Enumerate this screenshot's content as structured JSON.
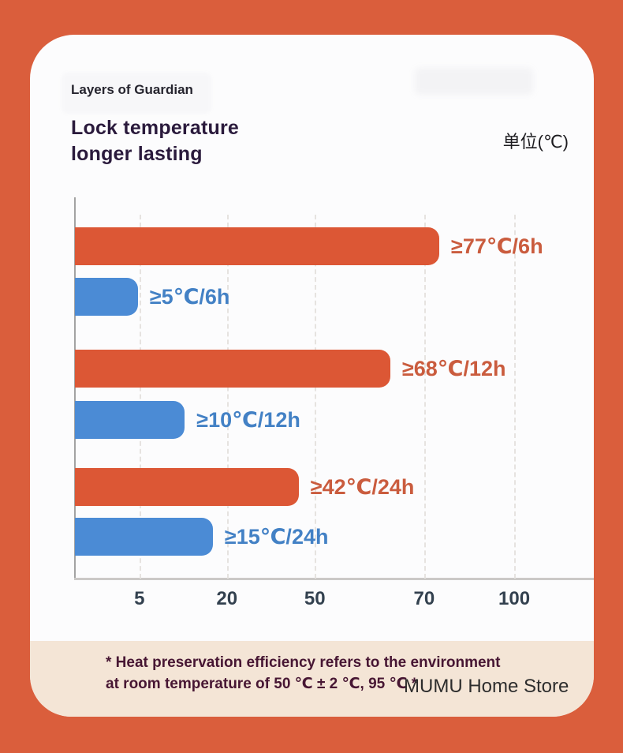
{
  "colors": {
    "background": "#DA5E3C",
    "card": "#FCFCFD",
    "bar_orange": "#DC5735",
    "bar_blue": "#4B8BD5",
    "bar_label_orange": "#CA5C3E",
    "bar_label_blue": "#4381C5",
    "title_text": "#2A1A3C",
    "axis_tick_text": "#33414F",
    "footnote_background": "#F4E5D6",
    "footnote_text": "#471633",
    "watermark_text": "#2D2D2D"
  },
  "header": {
    "eyebrow": "Layers of Guardian",
    "title_line1": "Lock temperature",
    "title_line2": "longer lasting",
    "unit_label": "单位(℃)"
  },
  "chart_data": {
    "type": "bar",
    "orientation": "horizontal",
    "title": "Lock temperature longer lasting",
    "unit": "℃",
    "grid": "vertical-dashed",
    "legend": "none",
    "x_axis": {
      "ticks": [
        "5",
        "20",
        "50",
        "70",
        "100"
      ],
      "tick_pct": [
        12.4,
        29.2,
        46.1,
        67.1,
        84.4
      ]
    },
    "series": [
      {
        "label": "≥77℃/6h",
        "temperature_c": 77,
        "duration": "6h",
        "color": "#DC5735",
        "label_color": "#CA5C3E",
        "width_pct": 70.0
      },
      {
        "label": "≥5℃/6h",
        "temperature_c": 5,
        "duration": "6h",
        "color": "#4B8BD5",
        "label_color": "#4381C5",
        "width_pct": 12.1
      },
      {
        "label": "≥68℃/12h",
        "temperature_c": 68,
        "duration": "12h",
        "color": "#DC5735",
        "label_color": "#CA5C3E",
        "width_pct": 60.6
      },
      {
        "label": "≥10℃/12h",
        "temperature_c": 10,
        "duration": "12h",
        "color": "#4B8BD5",
        "label_color": "#4381C5",
        "width_pct": 21.1
      },
      {
        "label": "≥42℃/24h",
        "temperature_c": 42,
        "duration": "24h",
        "color": "#DC5735",
        "label_color": "#CA5C3E",
        "width_pct": 43.0
      },
      {
        "label": "≥15℃/24h",
        "temperature_c": 15,
        "duration": "24h",
        "color": "#4B8BD5",
        "label_color": "#4381C5",
        "width_pct": 26.5
      }
    ]
  },
  "footnote": {
    "line1": "* Heat preservation efficiency refers to the environment",
    "line2": "at room temperature of 50 ℃ ± 2 ℃, 95 ℃ *"
  },
  "watermark": "MUMU Home Store"
}
